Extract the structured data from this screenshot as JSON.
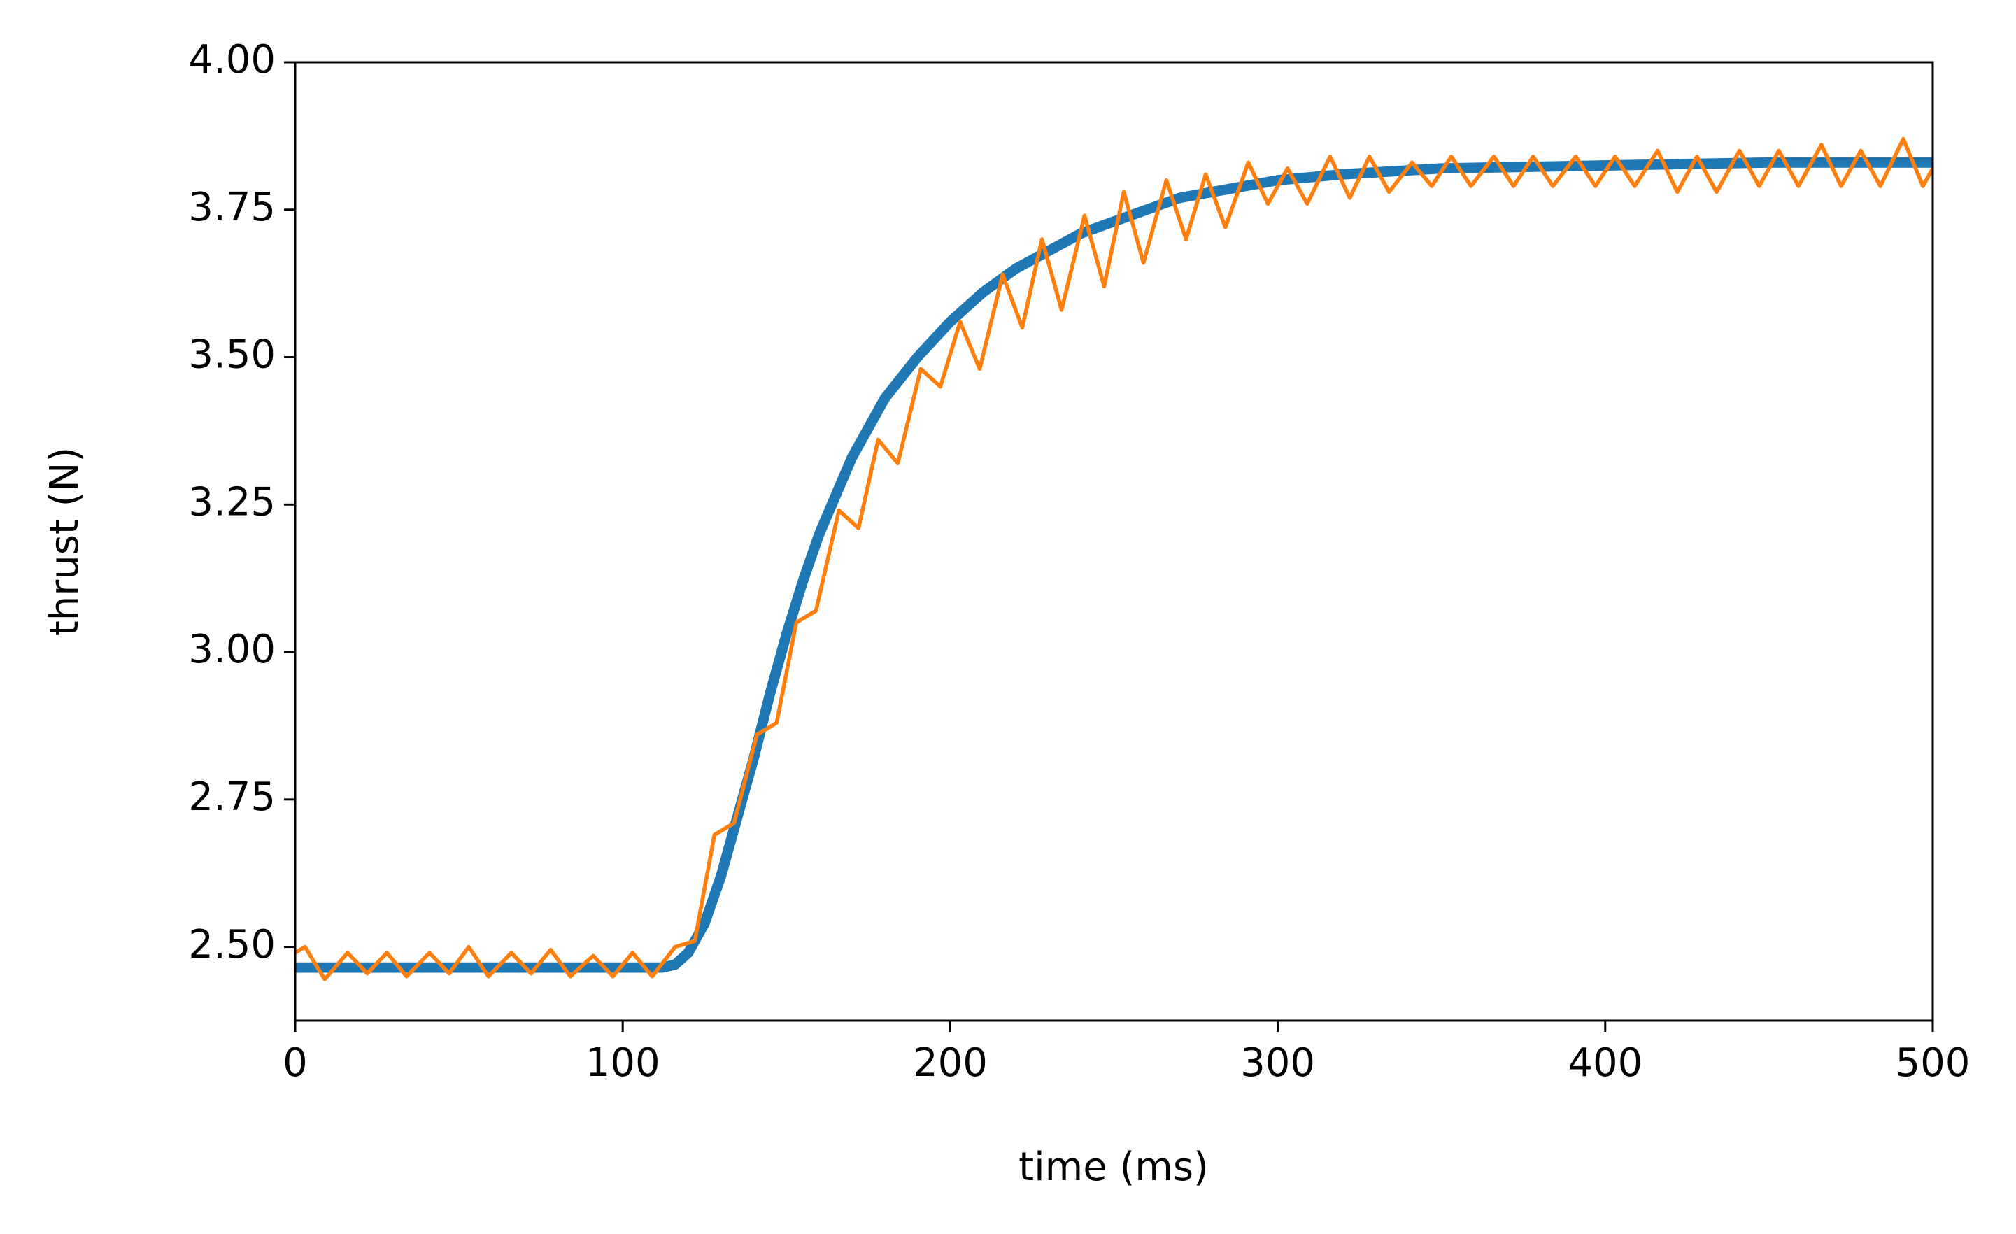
{
  "chart_data": {
    "type": "line",
    "xlabel": "time (ms)",
    "ylabel": "thrust (N)",
    "xlim": [
      0,
      500
    ],
    "ylim": [
      2.375,
      4.0
    ],
    "xticks": [
      0,
      100,
      200,
      300,
      400,
      500
    ],
    "yticks": [
      {
        "value": 2.5,
        "label": "2.50"
      },
      {
        "value": 2.75,
        "label": "2.75"
      },
      {
        "value": 3.0,
        "label": "3.00"
      },
      {
        "value": 3.25,
        "label": "3.25"
      },
      {
        "value": 3.5,
        "label": "3.50"
      },
      {
        "value": 3.75,
        "label": "3.75"
      },
      {
        "value": 4.0,
        "label": "4.00"
      }
    ],
    "series": [
      {
        "color": "#1f77b4",
        "width": 8,
        "x": [
          0,
          50,
          100,
          112,
          116,
          120,
          125,
          130,
          135,
          140,
          145,
          150,
          155,
          160,
          170,
          180,
          190,
          200,
          210,
          220,
          230,
          240,
          250,
          260,
          270,
          280,
          290,
          300,
          320,
          350,
          400,
          450,
          500
        ],
        "values": [
          2.465,
          2.465,
          2.465,
          2.465,
          2.47,
          2.49,
          2.54,
          2.62,
          2.72,
          2.82,
          2.93,
          3.03,
          3.12,
          3.2,
          3.33,
          3.43,
          3.5,
          3.56,
          3.61,
          3.65,
          3.68,
          3.71,
          3.73,
          3.75,
          3.77,
          3.78,
          3.79,
          3.8,
          3.81,
          3.82,
          3.825,
          3.83,
          3.83
        ]
      },
      {
        "color": "#ff7f0e",
        "width": 3,
        "x": [
          0,
          3,
          9,
          16,
          22,
          28,
          34,
          41,
          47,
          53,
          59,
          66,
          72,
          78,
          84,
          91,
          97,
          103,
          109,
          116,
          122,
          128,
          134,
          141,
          147,
          153,
          159,
          166,
          172,
          178,
          184,
          191,
          197,
          203,
          209,
          216,
          222,
          228,
          234,
          241,
          247,
          253,
          259,
          266,
          272,
          278,
          284,
          291,
          297,
          303,
          309,
          316,
          322,
          328,
          334,
          341,
          347,
          353,
          359,
          366,
          372,
          378,
          384,
          391,
          397,
          403,
          409,
          416,
          422,
          428,
          434,
          441,
          447,
          453,
          459,
          466,
          472,
          478,
          484,
          491,
          497,
          500
        ],
        "values": [
          2.49,
          2.5,
          2.445,
          2.49,
          2.455,
          2.49,
          2.45,
          2.49,
          2.455,
          2.5,
          2.45,
          2.49,
          2.455,
          2.495,
          2.45,
          2.485,
          2.45,
          2.49,
          2.45,
          2.5,
          2.51,
          2.69,
          2.71,
          2.86,
          2.88,
          3.05,
          3.07,
          3.24,
          3.21,
          3.36,
          3.32,
          3.48,
          3.45,
          3.56,
          3.48,
          3.64,
          3.55,
          3.7,
          3.58,
          3.74,
          3.62,
          3.78,
          3.66,
          3.8,
          3.7,
          3.81,
          3.72,
          3.83,
          3.76,
          3.82,
          3.76,
          3.84,
          3.77,
          3.84,
          3.78,
          3.83,
          3.79,
          3.84,
          3.79,
          3.84,
          3.79,
          3.84,
          3.79,
          3.84,
          3.79,
          3.84,
          3.79,
          3.85,
          3.78,
          3.84,
          3.78,
          3.85,
          3.79,
          3.85,
          3.79,
          3.86,
          3.79,
          3.85,
          3.79,
          3.87,
          3.79,
          3.82
        ]
      }
    ]
  }
}
